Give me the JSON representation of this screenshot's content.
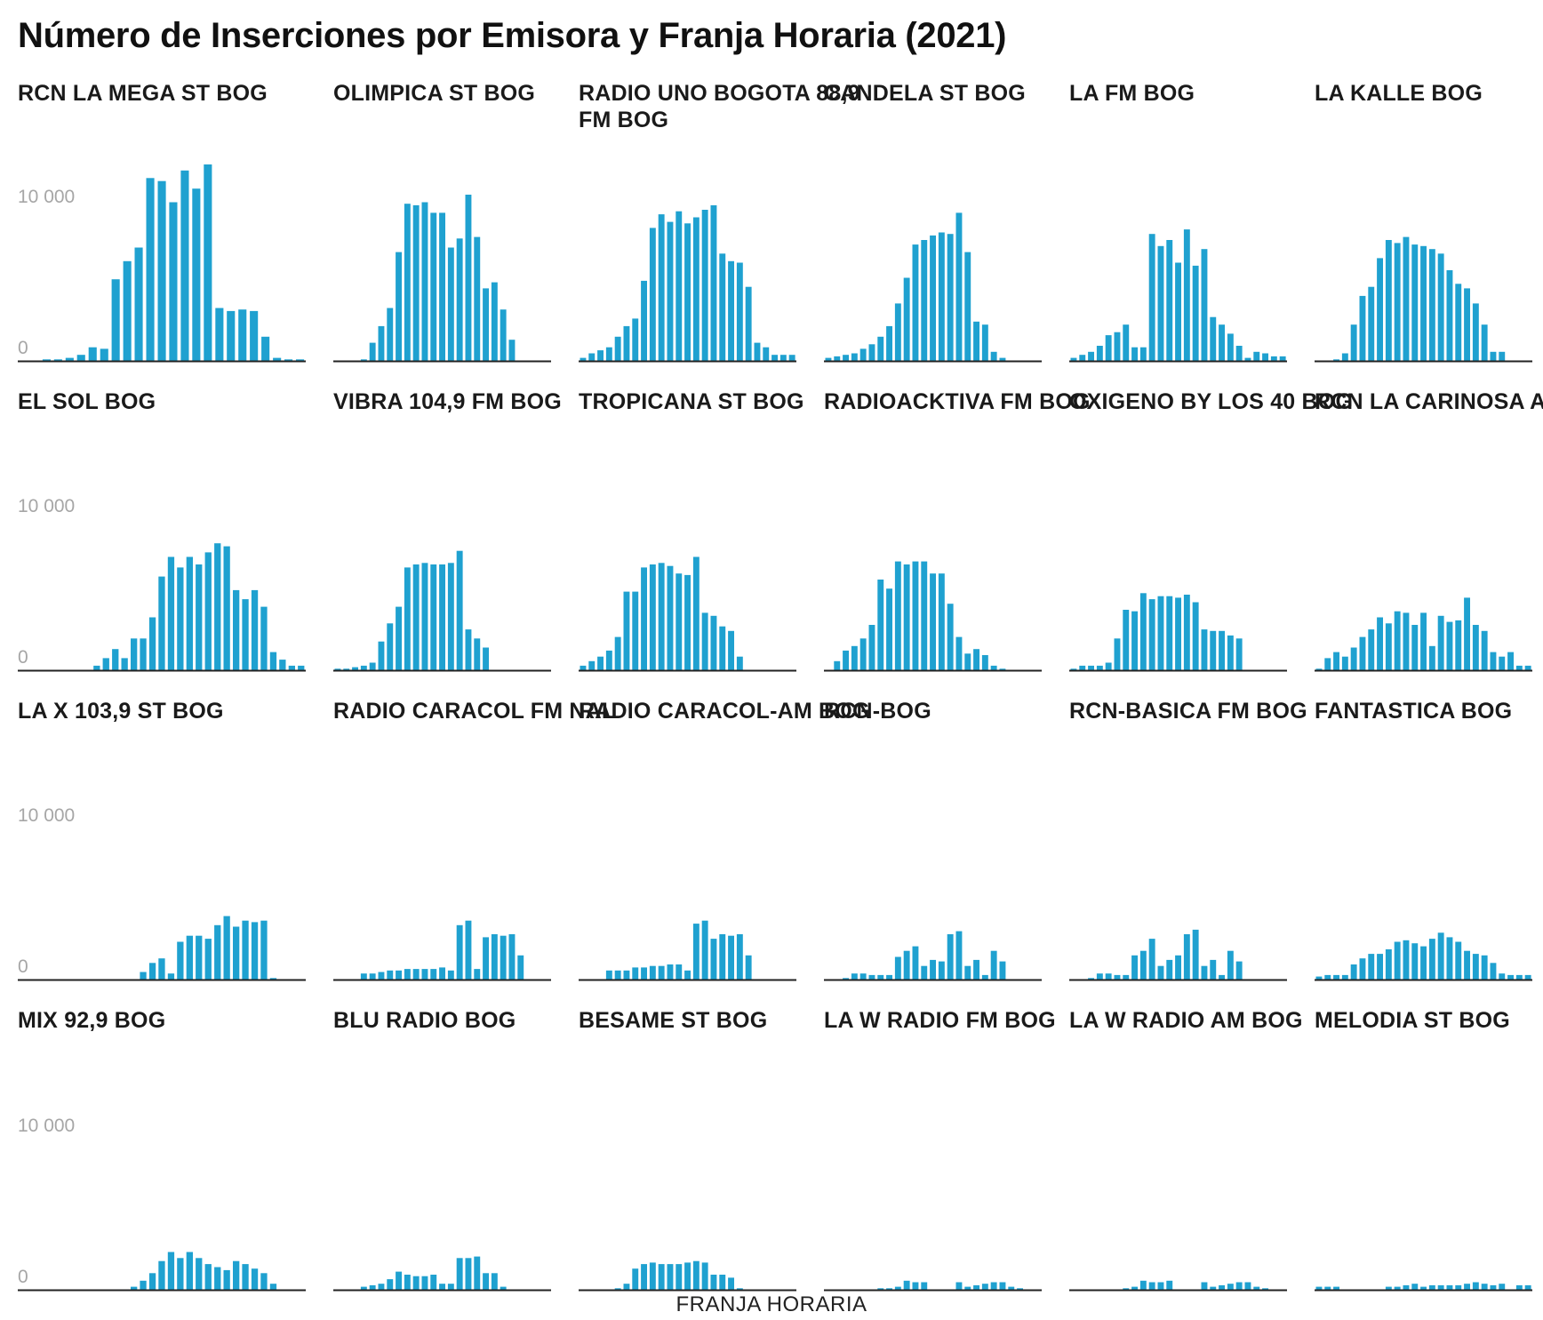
{
  "chart_data": {
    "type": "bar",
    "title": "Número de Inserciones por Emisora y Franja Horaria (2021)",
    "xlabel": "FRANJA HORARIA",
    "ylabel": "",
    "ylim": [
      0,
      14000
    ],
    "yticks": [
      0,
      10000
    ],
    "ytick_labels": [
      "0",
      "10 000"
    ],
    "grid": false,
    "bar_color": "#1fa1d0",
    "layout": "facet-grid 4 rows x 6 columns",
    "panels": [
      {
        "name": "RCN LA MEGA ST BOG",
        "values": [
          0,
          0,
          100,
          100,
          200,
          400,
          900,
          800,
          5400,
          6600,
          7500,
          12100,
          11900,
          10500,
          12600,
          11400,
          13000,
          3500,
          3300,
          3400,
          3300,
          1600,
          200,
          100,
          100
        ]
      },
      {
        "name": "OLIMPICA ST BOG",
        "values": [
          0,
          0,
          0,
          100,
          1200,
          2300,
          3500,
          7200,
          10400,
          10300,
          10500,
          9800,
          9800,
          7500,
          8100,
          11000,
          8200,
          4800,
          5200,
          3400,
          1400,
          0,
          0,
          0,
          0
        ]
      },
      {
        "name": "RADIO UNO BOGOTA 88,9 FM BOG",
        "values": [
          200,
          500,
          700,
          900,
          1600,
          2300,
          2800,
          5300,
          8800,
          9700,
          9200,
          9900,
          9100,
          9500,
          10000,
          10300,
          7100,
          6600,
          6500,
          4900,
          1200,
          900,
          400,
          400,
          400
        ]
      },
      {
        "name": "CANDELA ST BOG",
        "values": [
          200,
          300,
          400,
          500,
          800,
          1100,
          1600,
          2300,
          3800,
          5500,
          7700,
          8000,
          8300,
          8500,
          8400,
          9800,
          7200,
          2600,
          2400,
          600,
          200,
          0,
          0,
          0,
          0
        ]
      },
      {
        "name": "LA FM BOG",
        "values": [
          200,
          400,
          600,
          1000,
          1700,
          1900,
          2400,
          900,
          900,
          8400,
          7600,
          8000,
          6500,
          8700,
          6300,
          7400,
          2900,
          2400,
          1800,
          1000,
          200,
          600,
          500,
          300,
          300
        ]
      },
      {
        "name": "LA KALLE BOG",
        "values": [
          0,
          0,
          100,
          500,
          2400,
          4300,
          4900,
          6800,
          8000,
          7800,
          8200,
          7700,
          7600,
          7400,
          7100,
          6000,
          5100,
          4800,
          3800,
          2400,
          600,
          600,
          0,
          0,
          0
        ]
      },
      {
        "name": "EL SOL BOG",
        "values": [
          0,
          0,
          0,
          0,
          0,
          0,
          0,
          0,
          300,
          800,
          1400,
          800,
          2100,
          2100,
          3500,
          6200,
          7500,
          6800,
          7500,
          7000,
          7800,
          8400,
          8200,
          5300,
          4700,
          5300,
          4200,
          1200,
          700,
          300,
          300
        ]
      },
      {
        "name": "VIBRA 104,9 FM BOG",
        "values": [
          100,
          100,
          200,
          300,
          500,
          1900,
          3100,
          4200,
          6800,
          7000,
          7100,
          7000,
          7000,
          7100,
          7900,
          2700,
          2100,
          1500,
          0,
          0,
          0,
          0,
          0,
          0,
          0
        ]
      },
      {
        "name": "TROPICANA ST BOG",
        "values": [
          300,
          600,
          900,
          1300,
          2200,
          5200,
          5200,
          6800,
          7000,
          7100,
          6900,
          6400,
          6300,
          7500,
          3800,
          3600,
          2900,
          2600,
          900,
          0,
          0,
          0,
          0,
          0,
          0
        ]
      },
      {
        "name": "RADIOACKTIVA FM BOG",
        "values": [
          0,
          600,
          1300,
          1600,
          2100,
          3000,
          6000,
          5400,
          7200,
          7000,
          7200,
          7200,
          6400,
          6400,
          4400,
          2200,
          1100,
          1400,
          1000,
          300,
          100,
          0,
          0,
          0,
          0
        ]
      },
      {
        "name": "OXIGENO BY LOS 40 BOG",
        "values": [
          100,
          300,
          300,
          300,
          500,
          2100,
          4000,
          3900,
          5100,
          4700,
          4900,
          4900,
          4800,
          5000,
          4500,
          2700,
          2600,
          2600,
          2300,
          2100,
          0,
          0,
          0,
          0,
          0
        ]
      },
      {
        "name": "RCN LA CARINOSA AM",
        "values": [
          100,
          800,
          1200,
          900,
          1500,
          2200,
          2700,
          3500,
          3100,
          3900,
          3800,
          3000,
          3800,
          1600,
          3600,
          3200,
          3300,
          4800,
          3000,
          2600,
          1200,
          900,
          1200,
          300,
          300
        ]
      },
      {
        "name": "LA X 103,9 ST BOG",
        "values": [
          0,
          0,
          0,
          0,
          0,
          0,
          0,
          0,
          0,
          0,
          0,
          0,
          0,
          500,
          1100,
          1400,
          400,
          2500,
          2900,
          2900,
          2700,
          3600,
          4200,
          3500,
          3900,
          3800,
          3900,
          100,
          0,
          0,
          0
        ]
      },
      {
        "name": "RADIO CARACOL FM NAL",
        "values": [
          0,
          0,
          0,
          400,
          400,
          500,
          600,
          600,
          700,
          700,
          700,
          700,
          800,
          600,
          3600,
          3900,
          700,
          2800,
          3000,
          2900,
          3000,
          1600,
          0,
          0,
          0
        ]
      },
      {
        "name": "RADIO CARACOL-AM BOG",
        "values": [
          0,
          0,
          0,
          600,
          600,
          600,
          800,
          800,
          900,
          900,
          1000,
          1000,
          600,
          3700,
          3900,
          2700,
          3000,
          2900,
          3000,
          1600,
          0,
          0,
          0,
          0,
          0
        ]
      },
      {
        "name": "RCN-BOG",
        "values": [
          0,
          0,
          100,
          400,
          400,
          300,
          300,
          300,
          1500,
          1900,
          2200,
          900,
          1300,
          1200,
          3000,
          3200,
          900,
          1300,
          300,
          1900,
          1200,
          0,
          0,
          0,
          0
        ]
      },
      {
        "name": "RCN-BASICA FM BOG",
        "values": [
          0,
          0,
          100,
          400,
          400,
          300,
          300,
          1600,
          1900,
          2700,
          900,
          1300,
          1600,
          3000,
          3300,
          900,
          1300,
          300,
          1900,
          1200,
          0,
          0,
          0,
          0,
          0
        ]
      },
      {
        "name": "FANTASTICA BOG",
        "values": [
          200,
          300,
          300,
          300,
          1000,
          1400,
          1700,
          1700,
          2000,
          2500,
          2600,
          2400,
          2200,
          2700,
          3100,
          2800,
          2500,
          1900,
          1700,
          1600,
          1100,
          400,
          300,
          300,
          300
        ]
      },
      {
        "name": "MIX 92,9 BOG",
        "values": [
          0,
          0,
          0,
          0,
          0,
          0,
          0,
          0,
          0,
          0,
          0,
          0,
          200,
          600,
          1100,
          1900,
          2500,
          2100,
          2500,
          2100,
          1700,
          1500,
          1300,
          1900,
          1700,
          1400,
          1100,
          400,
          0,
          0,
          0
        ]
      },
      {
        "name": "BLU RADIO BOG",
        "values": [
          0,
          0,
          0,
          200,
          300,
          400,
          700,
          1200,
          1000,
          900,
          900,
          1000,
          400,
          400,
          2100,
          2100,
          2200,
          1100,
          1100,
          200,
          0,
          0,
          0,
          0,
          0
        ]
      },
      {
        "name": "BESAME ST BOG",
        "values": [
          0,
          0,
          0,
          0,
          100,
          400,
          1400,
          1700,
          1800,
          1700,
          1700,
          1700,
          1800,
          1900,
          1800,
          1000,
          1000,
          800,
          100,
          0,
          0,
          0,
          0,
          0,
          0
        ]
      },
      {
        "name": "LA W RADIO FM BOG",
        "values": [
          0,
          0,
          0,
          0,
          0,
          0,
          100,
          100,
          200,
          600,
          500,
          500,
          0,
          0,
          0,
          500,
          200,
          300,
          400,
          500,
          500,
          200,
          100,
          0,
          0
        ]
      },
      {
        "name": "LA W RADIO AM BOG",
        "values": [
          0,
          0,
          0,
          0,
          0,
          0,
          100,
          200,
          600,
          500,
          500,
          600,
          0,
          0,
          0,
          500,
          200,
          300,
          400,
          500,
          500,
          200,
          100,
          0,
          0
        ]
      },
      {
        "name": "MELODIA ST BOG",
        "values": [
          200,
          200,
          200,
          0,
          0,
          0,
          0,
          0,
          200,
          200,
          300,
          400,
          200,
          300,
          300,
          300,
          300,
          400,
          500,
          400,
          300,
          400,
          0,
          300,
          300
        ]
      }
    ]
  }
}
